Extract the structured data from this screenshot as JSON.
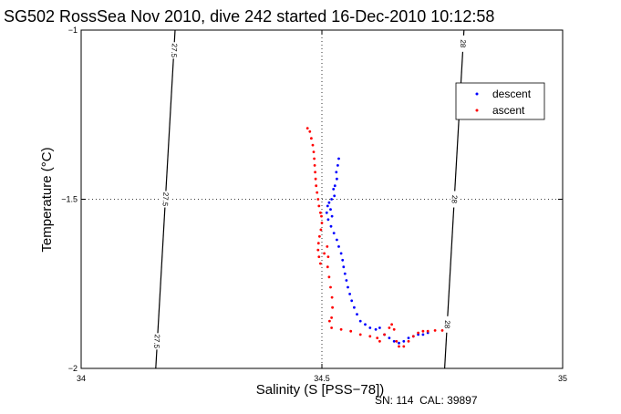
{
  "chart_data": {
    "type": "scatter",
    "title": "SG502 RossSea Nov 2010, dive 242 started 16-Dec-2010 10:12:58",
    "xlabel": "Salinity (S [PSS−78])",
    "ylabel": "Temperature (°C)",
    "xlim": [
      34,
      35
    ],
    "ylim": [
      -2,
      -1
    ],
    "xticks": [
      34,
      34.5,
      35
    ],
    "xtick_labels": [
      "34",
      "34.5",
      "35"
    ],
    "yticks": [
      -1,
      -1.5,
      -2
    ],
    "ytick_labels": [
      "−1",
      "−1.5",
      "−2"
    ],
    "grid": "dotted at 34.5 and −1.5",
    "legend_placement": "top-right",
    "note": "SN: 114  CAL: 39897",
    "colors": {
      "descent": "#0000ff",
      "ascent": "#ff0000",
      "contour": "#000000"
    },
    "contours": [
      {
        "label": "27.5",
        "points": [
          [
            34.195,
            -1.0
          ],
          [
            34.155,
            -2.0
          ]
        ],
        "label_positions": [
          [
            34.193,
            -1.06
          ],
          [
            34.175,
            -1.5
          ],
          [
            34.157,
            -1.92
          ]
        ]
      },
      {
        "label": "28",
        "points": [
          [
            34.795,
            -1.0
          ],
          [
            34.755,
            -2.0
          ]
        ],
        "label_positions": [
          [
            34.793,
            -1.04
          ],
          [
            34.775,
            -1.5
          ],
          [
            34.76,
            -1.87
          ]
        ]
      }
    ],
    "series": [
      {
        "name": "descent",
        "marker": ".",
        "points": [
          [
            34.535,
            -1.38
          ],
          [
            34.533,
            -1.4
          ],
          [
            34.53,
            -1.42
          ],
          [
            34.531,
            -1.44
          ],
          [
            34.527,
            -1.46
          ],
          [
            34.524,
            -1.47
          ],
          [
            34.526,
            -1.49
          ],
          [
            34.52,
            -1.5
          ],
          [
            34.515,
            -1.51
          ],
          [
            34.512,
            -1.52
          ],
          [
            34.518,
            -1.53
          ],
          [
            34.51,
            -1.54
          ],
          [
            34.521,
            -1.55
          ],
          [
            34.513,
            -1.56
          ],
          [
            34.519,
            -1.58
          ],
          [
            34.525,
            -1.6
          ],
          [
            34.531,
            -1.62
          ],
          [
            34.535,
            -1.64
          ],
          [
            34.54,
            -1.66
          ],
          [
            34.543,
            -1.68
          ],
          [
            34.545,
            -1.7
          ],
          [
            34.548,
            -1.72
          ],
          [
            34.551,
            -1.74
          ],
          [
            34.554,
            -1.76
          ],
          [
            34.558,
            -1.78
          ],
          [
            34.562,
            -1.8
          ],
          [
            34.567,
            -1.82
          ],
          [
            34.573,
            -1.84
          ],
          [
            34.58,
            -1.86
          ],
          [
            34.59,
            -1.87
          ],
          [
            34.6,
            -1.88
          ],
          [
            34.612,
            -1.885
          ],
          [
            34.62,
            -1.88
          ],
          [
            34.63,
            -1.9
          ],
          [
            34.64,
            -1.91
          ],
          [
            34.65,
            -1.92
          ],
          [
            34.66,
            -1.925
          ],
          [
            34.67,
            -1.92
          ],
          [
            34.68,
            -1.91
          ],
          [
            34.69,
            -1.905
          ],
          [
            34.7,
            -1.9
          ],
          [
            34.71,
            -1.9
          ],
          [
            34.72,
            -1.895
          ]
        ]
      },
      {
        "name": "ascent",
        "marker": ".",
        "points": [
          [
            34.47,
            -1.29
          ],
          [
            34.475,
            -1.3
          ],
          [
            34.478,
            -1.32
          ],
          [
            34.481,
            -1.34
          ],
          [
            34.483,
            -1.36
          ],
          [
            34.484,
            -1.38
          ],
          [
            34.485,
            -1.4
          ],
          [
            34.486,
            -1.42
          ],
          [
            34.487,
            -1.44
          ],
          [
            34.488,
            -1.46
          ],
          [
            34.49,
            -1.48
          ],
          [
            34.492,
            -1.5
          ],
          [
            34.494,
            -1.52
          ],
          [
            34.497,
            -1.54
          ],
          [
            34.499,
            -1.55
          ],
          [
            34.5,
            -1.57
          ],
          [
            34.498,
            -1.59
          ],
          [
            34.495,
            -1.61
          ],
          [
            34.493,
            -1.63
          ],
          [
            34.492,
            -1.65
          ],
          [
            34.494,
            -1.67
          ],
          [
            34.497,
            -1.69
          ],
          [
            34.505,
            -1.66
          ],
          [
            34.511,
            -1.64
          ],
          [
            34.513,
            -1.67
          ],
          [
            34.512,
            -1.7
          ],
          [
            34.515,
            -1.73
          ],
          [
            34.518,
            -1.76
          ],
          [
            34.521,
            -1.79
          ],
          [
            34.522,
            -1.82
          ],
          [
            34.52,
            -1.85
          ],
          [
            34.516,
            -1.86
          ],
          [
            34.52,
            -1.88
          ],
          [
            34.54,
            -1.885
          ],
          [
            34.56,
            -1.89
          ],
          [
            34.58,
            -1.9
          ],
          [
            34.6,
            -1.905
          ],
          [
            34.615,
            -1.91
          ],
          [
            34.62,
            -1.92
          ],
          [
            34.63,
            -1.9
          ],
          [
            34.64,
            -1.88
          ],
          [
            34.645,
            -1.87
          ],
          [
            34.65,
            -1.885
          ],
          [
            34.655,
            -1.92
          ],
          [
            34.66,
            -1.935
          ],
          [
            34.67,
            -1.935
          ],
          [
            34.68,
            -1.92
          ],
          [
            34.69,
            -1.905
          ],
          [
            34.7,
            -1.895
          ],
          [
            34.71,
            -1.89
          ],
          [
            34.72,
            -1.89
          ],
          [
            34.735,
            -1.888
          ],
          [
            34.75,
            -1.888
          ]
        ]
      }
    ]
  }
}
